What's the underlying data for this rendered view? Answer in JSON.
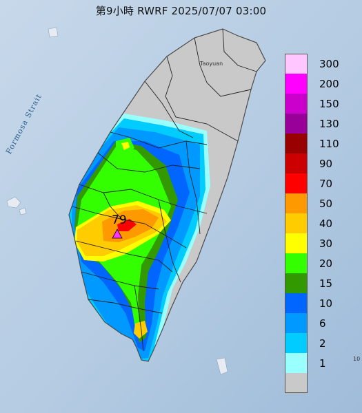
{
  "title": "第9小時  RWRF 2025/07/07 03:00",
  "sea_label": "Formosa Strait",
  "city_label": "Taoyuan",
  "corner_mark": "10",
  "max_marker": {
    "value": "79",
    "color": "#ff33ff"
  },
  "legend": {
    "steps": [
      {
        "label": "300",
        "color": "#ffc6ff"
      },
      {
        "label": "200",
        "color": "#ff00ff"
      },
      {
        "label": "150",
        "color": "#cc00cc"
      },
      {
        "label": "130",
        "color": "#990099"
      },
      {
        "label": "110",
        "color": "#990000"
      },
      {
        "label": "90",
        "color": "#cc0000"
      },
      {
        "label": "70",
        "color": "#ff0000"
      },
      {
        "label": "50",
        "color": "#ff9900"
      },
      {
        "label": "40",
        "color": "#ffcc00"
      },
      {
        "label": "30",
        "color": "#ffff00"
      },
      {
        "label": "20",
        "color": "#33ff00"
      },
      {
        "label": "15",
        "color": "#339900"
      },
      {
        "label": "10",
        "color": "#0066ff"
      },
      {
        "label": "6",
        "color": "#0099ff"
      },
      {
        "label": "2",
        "color": "#00ccff"
      },
      {
        "label": "1",
        "color": "#99ffff"
      },
      {
        "label": "",
        "color": "#c9c9c9"
      }
    ]
  },
  "colors": {
    "sea": "#b9cfe3",
    "land_dry": "#c9c9c9",
    "boundary": "#222222"
  }
}
